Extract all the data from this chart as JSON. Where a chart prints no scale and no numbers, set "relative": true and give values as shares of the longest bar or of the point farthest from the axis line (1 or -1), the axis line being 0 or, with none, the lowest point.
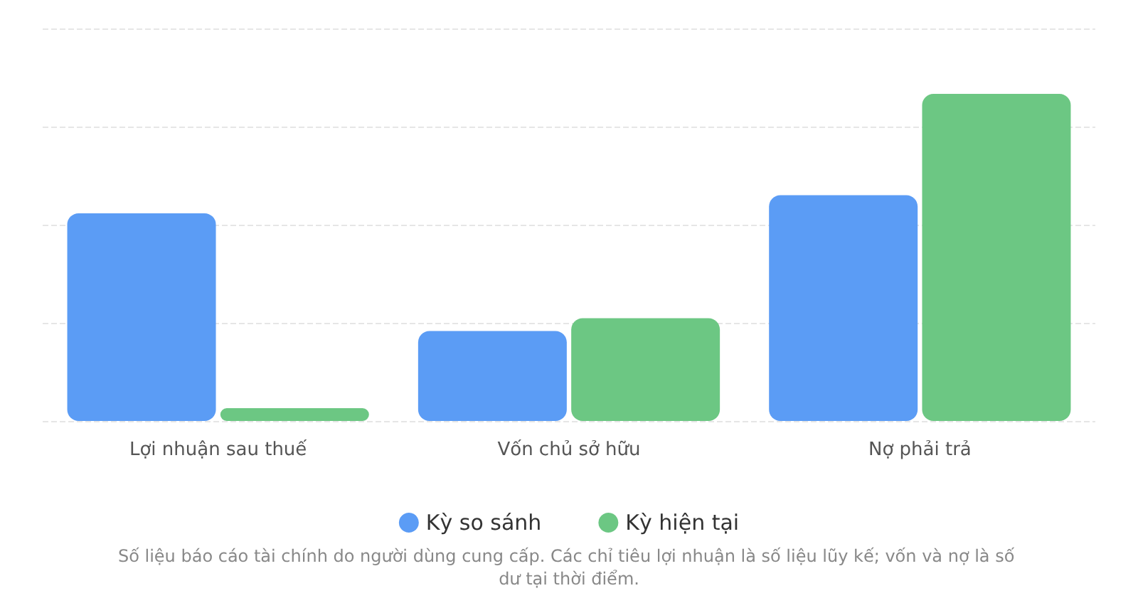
{
  "chart_data": {
    "type": "bar",
    "relative": true,
    "categories": [
      "Lợi nhuận sau thuế",
      "Vốn chủ sở hữu",
      "Nợ phải trả"
    ],
    "series": [
      {
        "name": "Kỳ so sánh",
        "color": "#5b9cf5",
        "values": [
          0.635,
          0.275,
          0.69
        ]
      },
      {
        "name": "Kỳ hiện tại",
        "color": "#6cc783",
        "values": [
          0.039,
          0.314,
          1
        ]
      }
    ],
    "grid": "y",
    "legend": "bottom",
    "annotations": [
      "Số liệu báo cáo tài chính do người dùng cung cấp. Các chỉ tiêu lợi nhuận là số liệu lũy kế; vốn và nợ là số dư tại thời điểm."
    ]
  }
}
